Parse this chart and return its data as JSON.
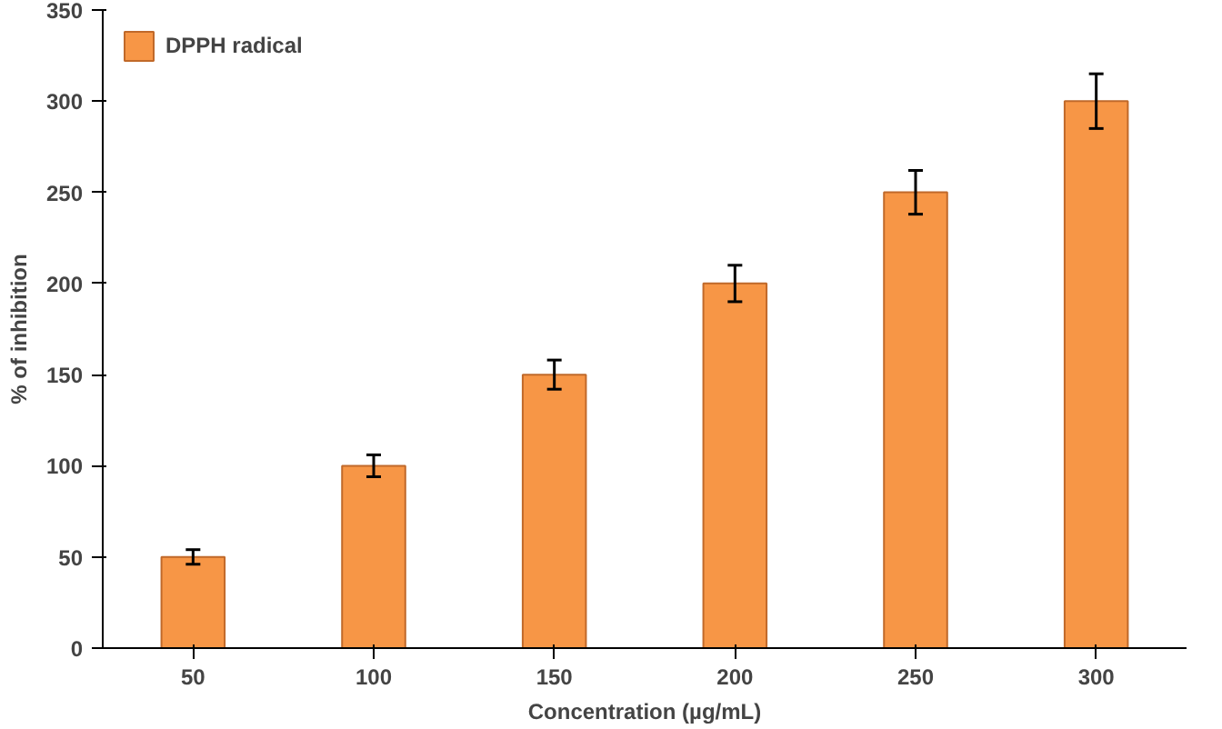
{
  "chart_data": {
    "type": "bar",
    "xlabel": "Concentration (µg/mL)",
    "ylabel": "% of inhibition",
    "categories": [
      "50",
      "100",
      "150",
      "200",
      "250",
      "300"
    ],
    "series": [
      {
        "name": "DPPH radical",
        "color": "#f79646",
        "values": [
          50,
          100,
          150,
          200,
          250,
          300
        ],
        "errors": [
          4,
          6,
          8,
          10,
          12,
          15
        ]
      }
    ],
    "ylim": [
      0,
      350
    ],
    "yticks": [
      0,
      50,
      100,
      150,
      200,
      250,
      300,
      350
    ],
    "grid": false,
    "legend": "top left"
  }
}
